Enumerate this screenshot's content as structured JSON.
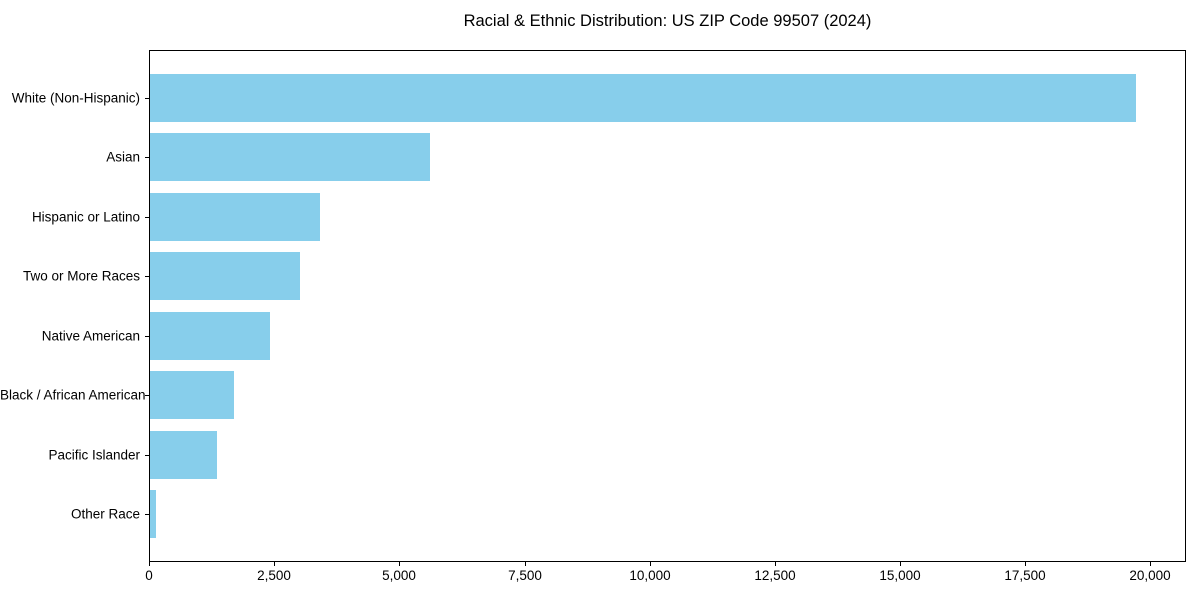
{
  "chart_data": {
    "type": "bar",
    "orientation": "horizontal",
    "title": "Racial & Ethnic Distribution: US ZIP Code 99507 (2024)",
    "categories": [
      "White (Non-Hispanic)",
      "Asian",
      "Hispanic or Latino",
      "Two or More Races",
      "Native American",
      "Black / African American",
      "Pacific Islander",
      "Other Race"
    ],
    "values": [
      19700,
      5600,
      3400,
      3000,
      2400,
      1670,
      1330,
      110
    ],
    "xlabel": "",
    "ylabel": "",
    "xlim": [
      0,
      20670
    ],
    "x_ticks": [
      0,
      2500,
      5000,
      7500,
      10000,
      12500,
      15000,
      17500,
      20000
    ],
    "x_tick_labels": [
      "0",
      "2,500",
      "5,000",
      "7,500",
      "10,000",
      "12,500",
      "15,000",
      "17,500",
      "20,000"
    ],
    "bar_color": "#87CEEB",
    "background_color": "#ffffff",
    "axis_color": "#000000",
    "grid": false,
    "legend": null
  }
}
